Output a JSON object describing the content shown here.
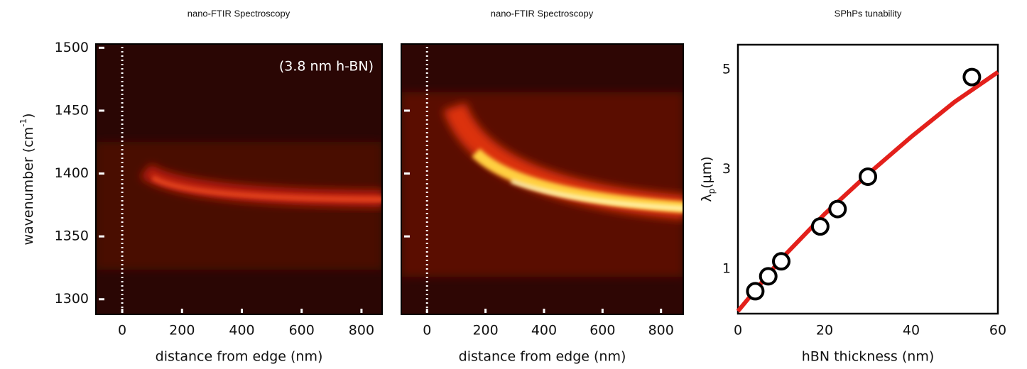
{
  "chart_data": [
    {
      "type": "heatmap",
      "title": "nano-FTIR Spectroscopy",
      "xlabel": "distance from edge (nm)",
      "ylabel_parts": [
        "wavenumber (cm",
        "-1",
        ")"
      ],
      "annotation": "(3.8 nm h-BN)",
      "xlim": [
        -88,
        869
      ],
      "xticks": [
        0,
        200,
        400,
        600,
        800
      ],
      "ylim": [
        1288,
        1503
      ],
      "yticks": [
        1300,
        1350,
        1400,
        1450,
        1500
      ],
      "edge_x": 0
    },
    {
      "type": "heatmap",
      "title": "nano-FTIR Spectroscopy",
      "xlabel": "distance from edge (nm)",
      "xlim": [
        -88,
        876
      ],
      "xticks": [
        0,
        200,
        400,
        600,
        800
      ],
      "ylim": [
        1288,
        1503
      ],
      "yticks": [
        1350,
        1400,
        1450
      ],
      "edge_x": 0
    },
    {
      "type": "scatter",
      "title": "SPhPs tunability",
      "xlabel": "hBN thickness (nm)",
      "ylabel_parts": [
        "λ",
        "p",
        "(μm)"
      ],
      "xlim": [
        0,
        60
      ],
      "xticks": [
        0,
        20,
        40,
        60
      ],
      "ylim": [
        0.1,
        5.5
      ],
      "yticks": [
        1,
        3,
        5
      ],
      "x": [
        4,
        7,
        10,
        19,
        23,
        30,
        54
      ],
      "values": [
        0.55,
        0.85,
        1.15,
        1.85,
        2.2,
        2.85,
        4.85
      ],
      "fit": {
        "color": "#e3201b",
        "x": [
          0,
          10,
          20,
          30,
          40,
          50,
          60
        ],
        "values": [
          0.15,
          1.2,
          2.1,
          2.9,
          3.65,
          4.35,
          4.95
        ]
      }
    }
  ]
}
